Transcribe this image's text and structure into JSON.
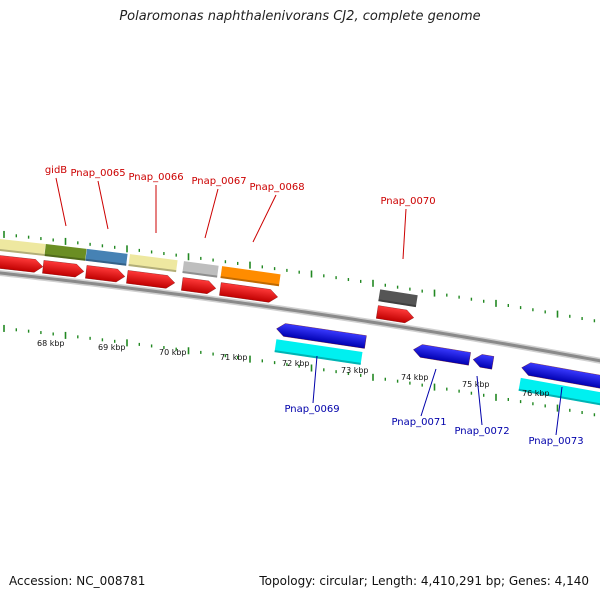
{
  "title": "Polaromonas naphthalenivorans CJ2, complete genome",
  "footer": {
    "accession": "Accession: NC_008781",
    "summary": "Topology: circular; Length: 4,410,291 bp; Genes: 4,140"
  },
  "colors": {
    "forward_label": "#cc0000",
    "reverse_label": "#0000aa",
    "backbone": "#8a8a8a",
    "ticks": "#228822"
  },
  "kbp_ticks": [
    "68 kbp",
    "69 kbp",
    "70 kbp",
    "71 kbp",
    "72 kbp",
    "73 kbp",
    "74 kbp",
    "75 kbp",
    "76 kbp"
  ],
  "forward_genes": [
    {
      "label": "",
      "color": "#eee8a0"
    },
    {
      "label": "gidB",
      "color": "#6b8e23"
    },
    {
      "label": "Pnap_0065",
      "color": "#4682b4"
    },
    {
      "label": "Pnap_0066",
      "color": "#eee8a0"
    },
    {
      "label": "Pnap_0067",
      "color": "#bebebe"
    },
    {
      "label": "Pnap_0068",
      "color": "#ff8c00"
    },
    {
      "label": "Pnap_0070",
      "color": "#555555"
    }
  ],
  "reverse_genes": [
    {
      "label": "Pnap_0069"
    },
    {
      "label": "Pnap_0071"
    },
    {
      "label": "Pnap_0072"
    },
    {
      "label": "Pnap_0073"
    }
  ]
}
